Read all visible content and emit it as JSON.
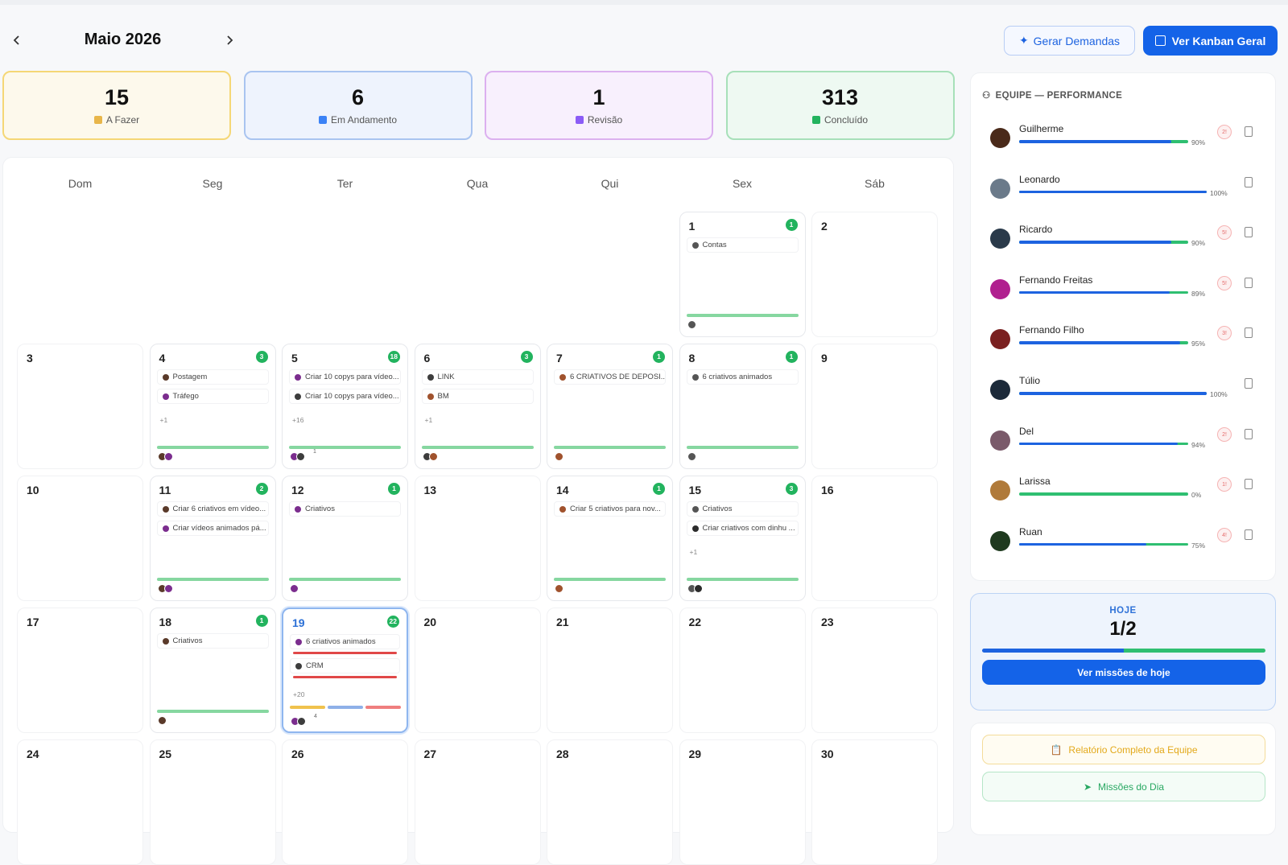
{
  "header": {
    "month": "Maio 2026",
    "buttons": [
      "Gerar Demandas",
      "Ver Kanban Geral"
    ]
  },
  "stats": [
    {
      "value": 15,
      "label": "A Fazer"
    },
    {
      "value": 6,
      "label": "Em Andamento"
    },
    {
      "value": 1,
      "label": "Revisão"
    },
    {
      "value": 313,
      "label": "Concluído"
    }
  ],
  "calendar": {
    "weekdays": [
      "Dom",
      "Seg",
      "Ter",
      "Qua",
      "Qui",
      "Sex",
      "Sáb"
    ],
    "weeks": [
      [
        null,
        null,
        null,
        null,
        null,
        {
          "day": 1,
          "count": 1,
          "tasks": [
            "Contas"
          ]
        },
        {
          "day": 2
        }
      ],
      [
        {
          "day": 3
        },
        {
          "day": 4,
          "count": 3,
          "tasks": [
            "Postagem",
            "Tráfego"
          ],
          "more": "+1"
        },
        {
          "day": 5,
          "count": 18,
          "tasks": [
            "Criar 10 copys para vídeo...",
            "Criar 10 copys para vídeo..."
          ],
          "more": "+16",
          "extra": "1"
        },
        {
          "day": 6,
          "count": 3,
          "tasks": [
            "LINK",
            "BM"
          ],
          "more": "+1"
        },
        {
          "day": 7,
          "count": 1,
          "tasks": [
            "6 CRIATIVOS DE DEPOSI..."
          ]
        },
        {
          "day": 8,
          "count": 1,
          "tasks": [
            "6 criativos animados"
          ]
        },
        {
          "day": 9
        }
      ],
      [
        {
          "day": 10
        },
        {
          "day": 11,
          "count": 2,
          "tasks": [
            "Criar 6 criativos em vídeo...",
            "Criar vídeos animados pá..."
          ]
        },
        {
          "day": 12,
          "count": 1,
          "tasks": [
            "Criativos"
          ]
        },
        {
          "day": 13
        },
        {
          "day": 14,
          "count": 1,
          "tasks": [
            "Criar 5 criativos para nov..."
          ]
        },
        {
          "day": 15,
          "count": 3,
          "tasks": [
            "Criativos",
            "Criar criativos com dinhu ..."
          ],
          "more": "+1"
        },
        {
          "day": 16
        }
      ],
      [
        {
          "day": 17
        },
        {
          "day": 18,
          "count": 1,
          "tasks": [
            "Criativos"
          ]
        },
        {
          "day": 19,
          "count": 22,
          "tasks": [
            "6 criativos animados",
            "CRM"
          ],
          "more": "+20",
          "extra": "4",
          "today": true
        },
        {
          "day": 20
        },
        {
          "day": 21
        },
        {
          "day": 22
        },
        {
          "day": 23
        }
      ],
      [
        {
          "day": 24
        },
        {
          "day": 25
        },
        {
          "day": 26
        },
        {
          "day": 27
        },
        {
          "day": 28
        },
        {
          "day": 29
        },
        {
          "day": 30
        }
      ]
    ]
  },
  "team": {
    "title": "EQUIPE — PERFORMANCE",
    "members": [
      {
        "name": "Guilherme",
        "percent": {
          "value": 90,
          "label": "90%"
        },
        "badge": "2!"
      },
      {
        "name": "Leonardo",
        "percent": {
          "value": 100,
          "label": "100%"
        }
      },
      {
        "name": "Ricardo",
        "percent": {
          "value": 90,
          "label": "90%"
        },
        "badge": "5!"
      },
      {
        "name": "Fernando Freitas",
        "percent": {
          "value": 89,
          "label": "89%"
        },
        "badge": "5!"
      },
      {
        "name": "Fernando Filho",
        "percent": {
          "value": 95,
          "label": "95%"
        },
        "badge": "3!"
      },
      {
        "name": "Túlio",
        "percent": {
          "value": 100,
          "label": "100%"
        }
      },
      {
        "name": "Del",
        "percent": {
          "value": 94,
          "label": "94%"
        },
        "badge": "2!"
      },
      {
        "name": "Larissa",
        "percent": {
          "value": 0,
          "label": "0%"
        },
        "badge": "1!"
      },
      {
        "name": "Ruan",
        "percent": {
          "value": 75,
          "label": "75%"
        },
        "badge": "4!"
      }
    ]
  },
  "today": {
    "label": "HOJE",
    "value": "1/2",
    "button": "Ver missões de hoje"
  },
  "actions": [
    "Relatório Completo da Equipe",
    "Missões do Dia"
  ]
}
